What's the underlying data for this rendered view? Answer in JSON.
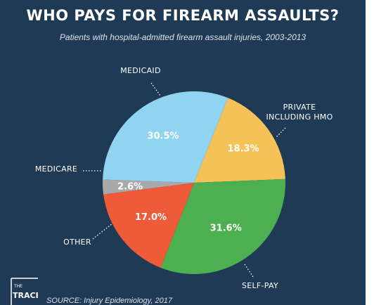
{
  "header": {
    "title": "WHO PAYS FOR FIREARM ASSAULTS?",
    "subtitle": "Patients with hospital-admitted firearm assault injuries, 2003-2013"
  },
  "chart_data": {
    "type": "pie",
    "title": "WHO PAYS FOR FIREARM ASSAULTS?",
    "subtitle": "Patients with hospital-admitted firearm assault injuries, 2003-2013",
    "unit": "%",
    "slices": [
      {
        "name": "MEDICAID",
        "label_lines": [
          "MEDICAID"
        ],
        "value": 30.5,
        "display": "30.5%",
        "color": "#90d4f2"
      },
      {
        "name": "PRIVATE INCLUDING HMO",
        "label_lines": [
          "PRIVATE",
          "INCLUDING HMO"
        ],
        "value": 18.3,
        "display": "18.3%",
        "color": "#f4c257"
      },
      {
        "name": "SELF-PAY",
        "label_lines": [
          "SELF-PAY"
        ],
        "value": 31.6,
        "display": "31.6%",
        "color": "#4caf50"
      },
      {
        "name": "OTHER",
        "label_lines": [
          "OTHER"
        ],
        "value": 17.0,
        "display": "17.0%",
        "color": "#ef5a39"
      },
      {
        "name": "MEDICARE",
        "label_lines": [
          "MEDICARE"
        ],
        "value": 2.6,
        "display": "2.6%",
        "color": "#a9a9a9"
      }
    ]
  },
  "footer": {
    "logo_small": "THE",
    "logo_big": "TRACE",
    "source": "SOURCE: Injury Epidemiology, 2017"
  }
}
